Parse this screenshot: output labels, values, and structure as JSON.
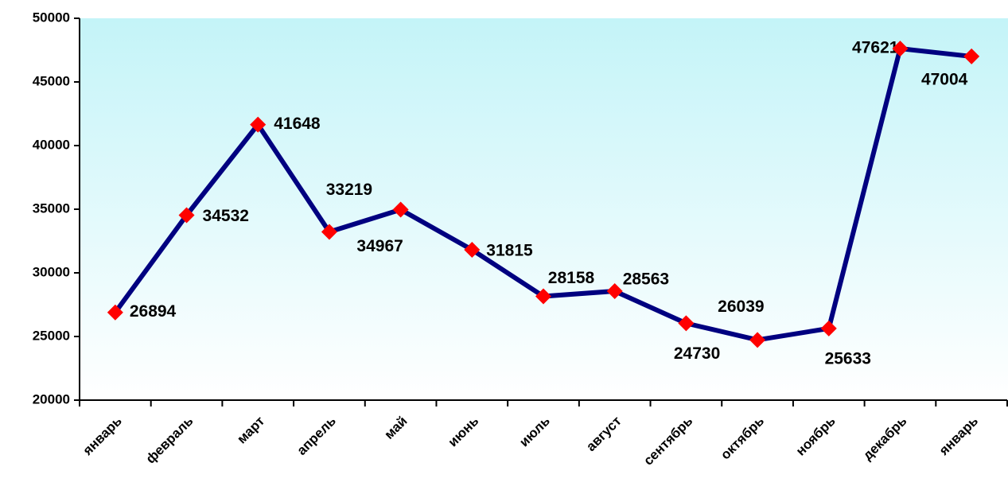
{
  "chart_data": {
    "type": "line",
    "categories": [
      "январь",
      "февраль",
      "март",
      "апрель",
      "май",
      "июнь",
      "июль",
      "август",
      "сентябрь",
      "октябрь",
      "ноябрь",
      "декабрь",
      "январь"
    ],
    "series": [
      {
        "color": "#000080",
        "marker_color": "#ff0000",
        "values": [
          26894,
          34532,
          41648,
          33219,
          34967,
          31815,
          28158,
          28563,
          26039,
          24730,
          25633,
          47621,
          47004
        ]
      }
    ],
    "ylim": [
      20000,
      50000
    ],
    "yticks": [
      20000,
      25000,
      30000,
      35000,
      40000,
      45000,
      50000
    ],
    "grid": false
  }
}
